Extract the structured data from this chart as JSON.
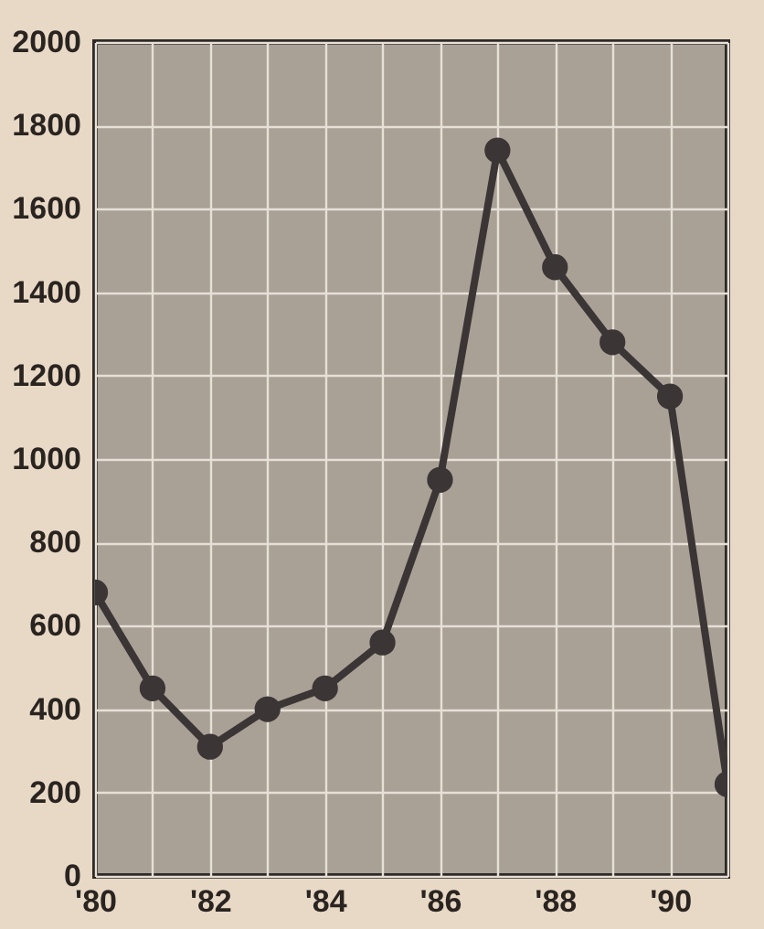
{
  "chart_data": {
    "type": "line",
    "x": [
      1980,
      1981,
      1982,
      1983,
      1984,
      1985,
      1986,
      1987,
      1988,
      1989,
      1990,
      1991
    ],
    "series": [
      {
        "color": "#3b3535",
        "values": [
          680,
          450,
          310,
          400,
          450,
          560,
          950,
          1740,
          1460,
          1280,
          1150,
          220
        ]
      }
    ],
    "xlim": [
      1980,
      1991
    ],
    "xticks": [
      {
        "value": 1980,
        "label": "'80"
      },
      {
        "value": 1981,
        "label": null
      },
      {
        "value": 1982,
        "label": "'82"
      },
      {
        "value": 1983,
        "label": null
      },
      {
        "value": 1984,
        "label": "'84"
      },
      {
        "value": 1985,
        "label": null
      },
      {
        "value": 1986,
        "label": "'86"
      },
      {
        "value": 1987,
        "label": null
      },
      {
        "value": 1988,
        "label": "'88"
      },
      {
        "value": 1989,
        "label": null
      },
      {
        "value": 1990,
        "label": "'90"
      },
      {
        "value": 1991,
        "label": null
      }
    ],
    "ylim": [
      0,
      2000
    ],
    "yticks": [
      0,
      200,
      400,
      600,
      800,
      1000,
      1200,
      1400,
      1600,
      1800,
      2000
    ],
    "grid": true,
    "marker": "circle",
    "line_style": "solid"
  }
}
